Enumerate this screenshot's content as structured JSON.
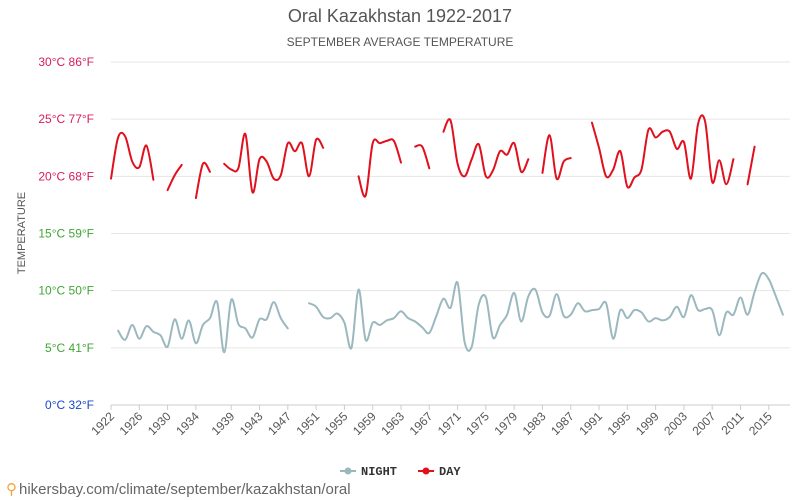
{
  "title": "Oral Kazakhstan 1922-2017",
  "subtitle": "SEPTEMBER AVERAGE TEMPERATURE",
  "ylabel": "TEMPERATURE",
  "footer": "hikersbay.com/climate/september/kazakhstan/oral",
  "y_ticks": [
    {
      "label": "0°C 32°F",
      "value": 0,
      "color": "#1a47c7"
    },
    {
      "label": "5°C 41°F",
      "value": 5,
      "color": "#3fa535"
    },
    {
      "label": "10°C 50°F",
      "value": 10,
      "color": "#3fa535"
    },
    {
      "label": "15°C 59°F",
      "value": 15,
      "color": "#3fa535"
    },
    {
      "label": "20°C 68°F",
      "value": 20,
      "color": "#d81b60"
    },
    {
      "label": "25°C 77°F",
      "value": 25,
      "color": "#d81b60"
    },
    {
      "label": "30°C 86°F",
      "value": 30,
      "color": "#d81b60"
    }
  ],
  "chart_data": {
    "type": "line",
    "title": "Oral Kazakhstan 1922-2017",
    "subtitle": "SEPTEMBER AVERAGE TEMPERATURE",
    "ylabel": "TEMPERATURE",
    "xlabel": "",
    "xlim": [
      1922,
      2018
    ],
    "ylim": [
      0,
      30
    ],
    "grid": true,
    "legend_position": "bottom-center",
    "x_ticks": [
      1922,
      1926,
      1930,
      1934,
      1939,
      1943,
      1947,
      1951,
      1955,
      1959,
      1963,
      1967,
      1971,
      1975,
      1979,
      1983,
      1987,
      1991,
      1995,
      1999,
      2003,
      2007,
      2011,
      2015
    ],
    "series": [
      {
        "name": "NIGHT",
        "color": "#9bb8bf",
        "points": [
          [
            1923,
            6.5
          ],
          [
            1924,
            5.7
          ],
          [
            1925,
            7.0
          ],
          [
            1926,
            5.8
          ],
          [
            1927,
            6.9
          ],
          [
            1928,
            6.4
          ],
          [
            1929,
            6.1
          ],
          [
            1930,
            5.1
          ],
          [
            1931,
            7.5
          ],
          [
            1932,
            5.8
          ],
          [
            1933,
            7.4
          ],
          [
            1934,
            5.4
          ],
          [
            1935,
            7.0
          ],
          [
            1936,
            7.6
          ],
          [
            1937,
            9.0
          ],
          [
            1938,
            4.6
          ],
          [
            1939,
            9.2
          ],
          [
            1940,
            7.1
          ],
          [
            1941,
            6.7
          ],
          [
            1942,
            5.9
          ],
          [
            1943,
            7.5
          ],
          [
            1944,
            7.5
          ],
          [
            1945,
            9.0
          ],
          [
            1946,
            7.6
          ],
          [
            1947,
            6.7
          ],
          null,
          [
            1950,
            8.9
          ],
          [
            1951,
            8.6
          ],
          [
            1952,
            7.7
          ],
          [
            1953,
            7.6
          ],
          [
            1954,
            8.0
          ],
          [
            1955,
            7.2
          ],
          [
            1956,
            5.0
          ],
          [
            1957,
            10.1
          ],
          [
            1958,
            5.7
          ],
          [
            1959,
            7.2
          ],
          [
            1960,
            7.0
          ],
          [
            1961,
            7.4
          ],
          [
            1962,
            7.6
          ],
          [
            1963,
            8.2
          ],
          [
            1964,
            7.6
          ],
          [
            1965,
            7.3
          ],
          [
            1966,
            6.8
          ],
          [
            1967,
            6.3
          ],
          [
            1968,
            7.8
          ],
          [
            1969,
            9.3
          ],
          [
            1970,
            8.5
          ],
          [
            1971,
            10.7
          ],
          [
            1972,
            5.5
          ],
          [
            1973,
            5.1
          ],
          [
            1974,
            8.8
          ],
          [
            1975,
            9.4
          ],
          [
            1976,
            5.9
          ],
          [
            1977,
            7.0
          ],
          [
            1978,
            7.9
          ],
          [
            1979,
            9.8
          ],
          [
            1980,
            7.3
          ],
          [
            1981,
            9.5
          ],
          [
            1982,
            10.1
          ],
          [
            1983,
            8.1
          ],
          [
            1984,
            7.8
          ],
          [
            1985,
            9.7
          ],
          [
            1986,
            7.8
          ],
          [
            1987,
            7.9
          ],
          [
            1988,
            8.9
          ],
          [
            1989,
            8.2
          ],
          [
            1990,
            8.3
          ],
          [
            1991,
            8.4
          ],
          [
            1992,
            8.9
          ],
          [
            1993,
            5.8
          ],
          [
            1994,
            8.3
          ],
          [
            1995,
            7.6
          ],
          [
            1996,
            8.3
          ],
          [
            1997,
            8.1
          ],
          [
            1998,
            7.3
          ],
          [
            1999,
            7.6
          ],
          [
            2000,
            7.4
          ],
          [
            2001,
            7.7
          ],
          [
            2002,
            8.6
          ],
          [
            2003,
            7.7
          ],
          [
            2004,
            9.6
          ],
          [
            2005,
            8.3
          ],
          [
            2006,
            8.4
          ],
          [
            2007,
            8.3
          ],
          [
            2008,
            6.1
          ],
          [
            2009,
            8.1
          ],
          [
            2010,
            7.9
          ],
          [
            2011,
            9.4
          ],
          [
            2012,
            7.9
          ],
          [
            2013,
            9.9
          ],
          [
            2014,
            11.5
          ],
          [
            2015,
            11.0
          ],
          [
            2016,
            9.5
          ],
          [
            2017,
            7.9
          ]
        ]
      },
      {
        "name": "DAY",
        "color": "#e0101d",
        "points": [
          [
            1922,
            19.8
          ],
          [
            1923,
            23.4
          ],
          [
            1924,
            23.5
          ],
          [
            1925,
            21.3
          ],
          [
            1926,
            20.8
          ],
          [
            1927,
            22.7
          ],
          [
            1928,
            19.7
          ],
          null,
          [
            1930,
            18.8
          ],
          [
            1931,
            20.1
          ],
          [
            1932,
            21.0
          ],
          null,
          [
            1934,
            18.1
          ],
          [
            1935,
            21.1
          ],
          [
            1936,
            20.4
          ],
          null,
          [
            1938,
            21.1
          ],
          [
            1939,
            20.6
          ],
          [
            1940,
            20.7
          ],
          [
            1941,
            23.7
          ],
          [
            1942,
            18.6
          ],
          [
            1943,
            21.5
          ],
          [
            1944,
            21.3
          ],
          [
            1945,
            19.8
          ],
          [
            1946,
            20.1
          ],
          [
            1947,
            22.9
          ],
          [
            1948,
            22.2
          ],
          [
            1949,
            22.9
          ],
          [
            1950,
            20.0
          ],
          [
            1951,
            23.2
          ],
          [
            1952,
            22.5
          ],
          null,
          [
            1957,
            20.0
          ],
          [
            1958,
            18.3
          ],
          [
            1959,
            22.9
          ],
          [
            1960,
            22.9
          ],
          [
            1961,
            23.1
          ],
          [
            1962,
            23.1
          ],
          [
            1963,
            21.2
          ],
          null,
          [
            1965,
            22.6
          ],
          [
            1966,
            22.6
          ],
          [
            1967,
            20.7
          ],
          null,
          [
            1969,
            23.9
          ],
          [
            1970,
            24.9
          ],
          [
            1971,
            21.1
          ],
          [
            1972,
            20.0
          ],
          [
            1973,
            21.5
          ],
          [
            1974,
            22.8
          ],
          [
            1975,
            20.0
          ],
          [
            1976,
            20.5
          ],
          [
            1977,
            22.2
          ],
          [
            1978,
            21.9
          ],
          [
            1979,
            22.9
          ],
          [
            1980,
            20.4
          ],
          [
            1981,
            21.5
          ],
          null,
          [
            1983,
            20.3
          ],
          [
            1984,
            23.6
          ],
          [
            1985,
            19.8
          ],
          [
            1986,
            21.3
          ],
          [
            1987,
            21.6
          ],
          null,
          [
            1990,
            24.7
          ],
          [
            1991,
            22.5
          ],
          [
            1992,
            20.0
          ],
          [
            1993,
            20.6
          ],
          [
            1994,
            22.2
          ],
          [
            1995,
            19.1
          ],
          [
            1996,
            19.9
          ],
          [
            1997,
            20.6
          ],
          [
            1998,
            24.1
          ],
          [
            1999,
            23.4
          ],
          [
            2000,
            23.9
          ],
          [
            2001,
            23.9
          ],
          [
            2002,
            22.4
          ],
          [
            2003,
            23.0
          ],
          [
            2004,
            19.8
          ],
          [
            2005,
            24.6
          ],
          [
            2006,
            24.8
          ],
          [
            2007,
            19.5
          ],
          [
            2008,
            21.4
          ],
          [
            2009,
            19.3
          ],
          [
            2010,
            21.5
          ],
          null,
          [
            2012,
            19.3
          ],
          [
            2013,
            22.6
          ]
        ]
      }
    ]
  }
}
